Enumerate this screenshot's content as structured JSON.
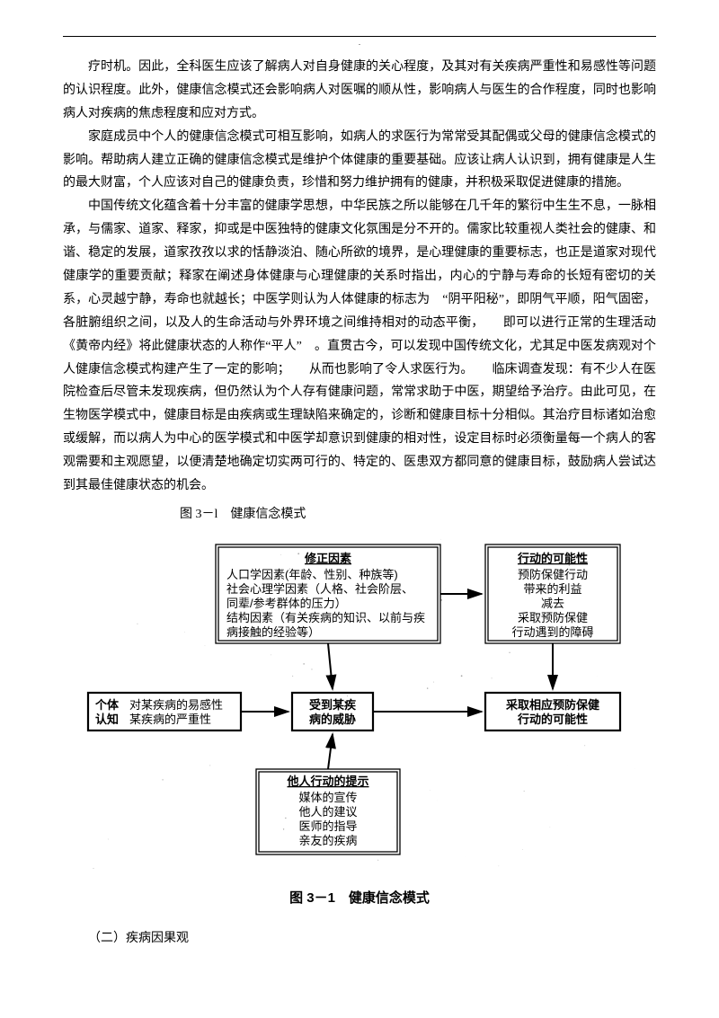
{
  "paragraphs": {
    "p1": "疗时机。因此，全科医生应该了解病人对自身健康的关心程度，及其对有关疾病严重性和易感性等问题的认识程度。此外，健康信念模式还会影响病人对医嘱的顺从性，影响病人与医生的合作程度，同时也影响病人对疾病的焦虑程度和应对方式。",
    "p2": "家庭成员中个人的健康信念模式可相互影响，如病人的求医行为常常受其配偶或父母的健康信念模式的影响。帮助病人建立正确的健康信念模式是维护个体健康的重要基础。应该让病人认识到，拥有健康是人生的最大财富，个人应该对自己的健康负责，珍惜和努力维护拥有的健康，并积极采取促进健康的措施。",
    "p3": "中国传统文化蕴含着十分丰富的健康学思想，中华民族之所以能够在几千年的繁衍中生生不息，一脉相承，与儒家、道家、释家，抑或是中医独特的健康文化氛围是分不开的。儒家比较重视人类社会的健康、和谐、稳定的发展，道家孜孜以求的恬静淡泊、随心所欲的境界，是心理健康的重要标志，也正是道家对现代健康学的重要贡献；释家在阐述身体健康与心理健康的关系时指出，内心的宁静与寿命的长短有密切的关系，心灵越宁静，寿命也就越长；中医学则认为人体健康的标志为　“阴平阳秘”，即阴气平顺，阳气固密，各脏腑组织之间，以及人的生命活动与外界环境之间维持相对的动态平衡，　　即可以进行正常的生理活动　《黄帝内经》将此健康状态的人称作“平人”　。直贯古今，可以发现中国传统文化，尤其足中医发病观对个人健康信念模式构建产生了一定的影响；　　从而也影响了令人求医行为。　　临床调查发现：有不少人在医院检查后尽管未发现疾病，但仍然认为个人存有健康问题，常常求助于中医，期望给予治疗。由此可见，在生物医学模式中，健康目标是由疾病或生理缺陷来确定的，诊断和健康目标十分相似。其治疗目标诸如治愈或缓解，而以病人为中心的医学模式和中医学却意识到健康的相对性，设定目标时必须衡量每一个病人的客观需要和主观愿望，以便清楚地确定切实两可行的、特定的、医患双方都同意的健康目标，鼓励病人尝试达到其最佳健康状态的机会。"
  },
  "caption_inline": "图 3－l　健康信念模式",
  "figure": {
    "caption": "图 3－1　健康信念模式",
    "style": {
      "box_stroke": "#000000",
      "box_stroke_w": 2.2,
      "double_stroke_w": 1.3,
      "font_family": "SimHei, 黑体, sans-serif",
      "text_size": 13,
      "title_size": 13,
      "arrow_color": "#000000",
      "arrow_w": 2,
      "bg": "#ffffff"
    },
    "boxes": {
      "modifiers": {
        "title": "修正因素",
        "lines": [
          "人口学因素(年龄、性别、种族等)",
          "社会心理学因素（人格、社会阶层、",
          "同辈/参考群体的压力）",
          "结构因素（有关疾病的知识、以前与疾",
          "病接触的经验等）"
        ]
      },
      "action_prob": {
        "title": "行动的可能性",
        "lines": [
          "预防保健行动",
          "带来的利益",
          "减去",
          "采取预防保健",
          "行动遇到的障碍"
        ]
      },
      "perception": {
        "label1": "个体",
        "label2": "认知",
        "lines": [
          "对某疾病的易感性",
          "某疾病的严重性"
        ]
      },
      "threat": {
        "lines": [
          "受到某疾",
          "病的威胁"
        ]
      },
      "take_action": {
        "lines": [
          "采取相应预防保健",
          "行动的可能性"
        ]
      },
      "cues": {
        "title": "他人行动的提示",
        "lines": [
          "媒体的宣传",
          "他人的建议",
          "医师的指导",
          "亲友的疾病"
        ]
      }
    }
  },
  "subhead": "（二）疾病因果观"
}
